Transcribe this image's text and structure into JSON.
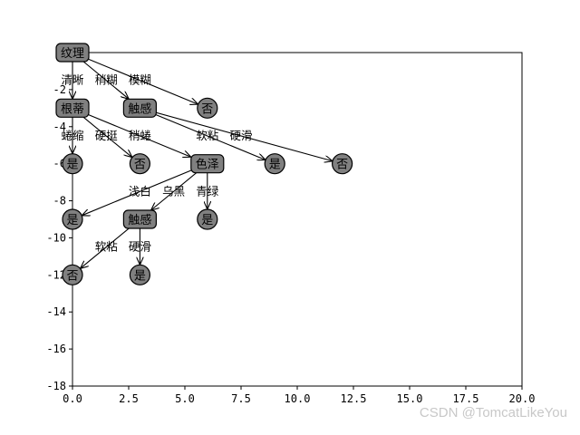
{
  "chart_data": {
    "type": "tree",
    "xlim": [
      0,
      20
    ],
    "ylim": [
      -18,
      0
    ],
    "x_ticks": [
      "0.0",
      "2.5",
      "5.0",
      "7.5",
      "10.0",
      "12.5",
      "15.0",
      "17.5",
      "20.0"
    ],
    "y_ticks": [
      "-2",
      "-4",
      "-6",
      "-8",
      "-10",
      "-12",
      "-14",
      "-16",
      "-18"
    ],
    "colors": {
      "node_fill": "#808080",
      "edge": "#000000"
    },
    "nodes": [
      {
        "id": "n1",
        "label": "纹理",
        "shape": "box",
        "x": 0,
        "y": 0
      },
      {
        "id": "n2",
        "label": "根蒂",
        "shape": "box",
        "x": 0,
        "y": -3
      },
      {
        "id": "n3",
        "label": "触感",
        "shape": "box",
        "x": 3,
        "y": -3
      },
      {
        "id": "n4",
        "label": "否",
        "shape": "circle",
        "x": 6,
        "y": -3
      },
      {
        "id": "n5",
        "label": "是",
        "shape": "circle",
        "x": 0,
        "y": -6
      },
      {
        "id": "n6",
        "label": "否",
        "shape": "circle",
        "x": 3,
        "y": -6
      },
      {
        "id": "n7",
        "label": "色泽",
        "shape": "box",
        "x": 6,
        "y": -6
      },
      {
        "id": "n8",
        "label": "是",
        "shape": "circle",
        "x": 9,
        "y": -6
      },
      {
        "id": "n9",
        "label": "否",
        "shape": "circle",
        "x": 12,
        "y": -6
      },
      {
        "id": "n10",
        "label": "是",
        "shape": "circle",
        "x": 0,
        "y": -9
      },
      {
        "id": "n11",
        "label": "触感",
        "shape": "box",
        "x": 3,
        "y": -9
      },
      {
        "id": "n12",
        "label": "是",
        "shape": "circle",
        "x": 6,
        "y": -9
      },
      {
        "id": "n13",
        "label": "否",
        "shape": "circle",
        "x": 0,
        "y": -12
      },
      {
        "id": "n14",
        "label": "是",
        "shape": "circle",
        "x": 3,
        "y": -12
      }
    ],
    "edges": [
      {
        "from": "n1",
        "to": "n2",
        "label": "清晰"
      },
      {
        "from": "n1",
        "to": "n3",
        "label": "稍糊"
      },
      {
        "from": "n1",
        "to": "n4",
        "label": "模糊"
      },
      {
        "from": "n2",
        "to": "n5",
        "label": "蜷缩"
      },
      {
        "from": "n2",
        "to": "n6",
        "label": "硬挺"
      },
      {
        "from": "n2",
        "to": "n7",
        "label": "稍蜷"
      },
      {
        "from": "n3",
        "to": "n8",
        "label": "软粘"
      },
      {
        "from": "n3",
        "to": "n9",
        "label": "硬滑"
      },
      {
        "from": "n7",
        "to": "n10",
        "label": "浅白"
      },
      {
        "from": "n7",
        "to": "n11",
        "label": "乌黑"
      },
      {
        "from": "n7",
        "to": "n12",
        "label": "青绿"
      },
      {
        "from": "n11",
        "to": "n13",
        "label": "软粘"
      },
      {
        "from": "n11",
        "to": "n14",
        "label": "硬滑"
      }
    ]
  },
  "watermark": "CSDN @TomcatLikeYou"
}
